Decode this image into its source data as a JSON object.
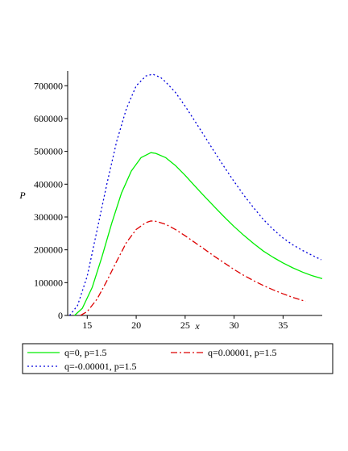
{
  "chart_data": {
    "type": "line",
    "title": "",
    "xlabel": "x",
    "ylabel": "P",
    "xlim": [
      13,
      39
    ],
    "ylim": [
      0,
      740000
    ],
    "xticks": [
      15,
      20,
      25,
      30,
      35
    ],
    "yticks": [
      0,
      100000,
      200000,
      300000,
      400000,
      500000,
      600000,
      700000
    ],
    "xtick_labels": [
      "15",
      "20",
      "25",
      "30",
      "35"
    ],
    "ytick_labels": [
      "0",
      "100000",
      "200000",
      "300000",
      "400000",
      "500000",
      "600000",
      "700000"
    ],
    "grid": false,
    "legend_position": "bottom",
    "series": [
      {
        "name": "q=0, p=1.5",
        "color": "#00ee00",
        "style": "solid",
        "x": [
          13.7,
          14.5,
          15.5,
          16.5,
          17.5,
          18.5,
          19.5,
          20.5,
          21.5,
          22.0,
          23,
          24,
          25,
          26,
          27,
          28,
          29,
          30,
          31,
          32,
          33,
          34,
          35,
          36,
          37,
          38,
          39
        ],
        "y": [
          0,
          22000,
          85000,
          178000,
          281000,
          373000,
          440000,
          481000,
          496000,
          494000,
          481000,
          457000,
          427000,
          394000,
          362000,
          331000,
          300000,
          271000,
          244000,
          219000,
          196000,
          177000,
          160000,
          145000,
          132000,
          121000,
          112000
        ]
      },
      {
        "name": "q=0.00001, p=1.5",
        "color": "#dd0000",
        "style": "dashdot",
        "x": [
          14.3,
          15,
          16,
          17,
          18,
          19,
          20,
          21,
          21.5,
          22,
          23,
          24,
          25,
          26,
          27,
          28,
          29,
          30,
          31,
          32,
          33,
          34,
          35,
          36,
          37.3
        ],
        "y": [
          0,
          12000,
          50000,
          105000,
          165000,
          222000,
          262000,
          283000,
          288000,
          287000,
          278000,
          262000,
          243000,
          222000,
          201000,
          180000,
          160000,
          140000,
          122000,
          106000,
          91000,
          78000,
          66000,
          55000,
          43000
        ]
      },
      {
        "name": "q=-0.00001, p=1.5",
        "color": "#0000dd",
        "style": "dotted",
        "x": [
          13.2,
          14,
          15,
          16,
          17,
          18,
          19,
          20,
          21,
          21.7,
          22.5,
          23,
          24,
          25,
          26,
          27,
          28,
          29,
          30,
          31,
          32,
          33,
          34,
          35,
          36,
          37,
          38,
          38.9
        ],
        "y": [
          0,
          30000,
          120000,
          260000,
          400000,
          530000,
          630000,
          700000,
          730000,
          735000,
          725000,
          712000,
          680000,
          638000,
          592000,
          545000,
          498000,
          452000,
          408000,
          366000,
          328000,
          292000,
          262000,
          236000,
          215000,
          198000,
          183000,
          170000
        ]
      }
    ]
  }
}
